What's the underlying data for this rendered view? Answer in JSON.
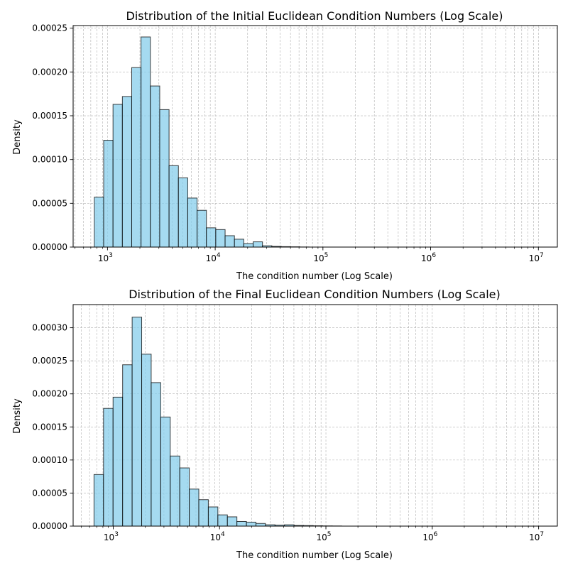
{
  "chart_data": [
    {
      "type": "bar",
      "title": "Distribution of the Initial Euclidean Condition Numbers (Log Scale)",
      "xlabel": "The condition number (Log Scale)",
      "ylabel": "Density",
      "x_scale": "log",
      "xlim": [
        480,
        15000000
      ],
      "ylim": [
        0,
        0.000253
      ],
      "grid": true,
      "bar_color": "#87ceeb",
      "edge_color": "#000000",
      "x_ticks": [
        "10^3",
        "10^4",
        "10^5",
        "10^6",
        "10^7"
      ],
      "y_ticks": [
        "0.00000",
        "0.00005",
        "0.00010",
        "0.00015",
        "0.00020",
        "0.00025"
      ],
      "bin_edges": [
        755,
        922,
        1126,
        1375,
        1678,
        2049,
        2502,
        3055,
        3730,
        4554,
        5560,
        6789,
        8290,
        10122,
        12359,
        15090,
        18425,
        22497,
        27469,
        33540,
        40952,
        50002,
        61052,
        74545,
        91019,
        111134,
        135695,
        165684,
        202300,
        247009,
        301597,
        368250,
        449633,
        548999,
        670325,
        818466,
        999348,
        1220205,
        1489870,
        1819130,
        2221154,
        2712001,
        3311337,
        4043122,
        4936636,
        6027614,
        7359695,
        8986160,
        10972060
      ],
      "values": [
        5.7e-05,
        0.000122,
        0.000163,
        0.000172,
        0.000205,
        0.00024,
        0.000184,
        0.000157,
        9.3e-05,
        7.9e-05,
        5.6e-05,
        4.2e-05,
        2.2e-05,
        2e-05,
        1.3e-05,
        9e-06,
        4e-06,
        6e-06,
        1.5e-06,
        8e-07,
        5e-07,
        3e-07,
        1e-07,
        0,
        0,
        0,
        0,
        0,
        0,
        0,
        0,
        0,
        0,
        0,
        0,
        0,
        0,
        0,
        0,
        0,
        0,
        0,
        0,
        0,
        0,
        0,
        0,
        0
      ]
    },
    {
      "type": "bar",
      "title": "Distribution of the Final Euclidean Condition Numbers (Log Scale)",
      "xlabel": "The condition number (Log Scale)",
      "ylabel": "Density",
      "x_scale": "log",
      "xlim": [
        420,
        15000000
      ],
      "ylim": [
        0,
        0.000335
      ],
      "grid": true,
      "bar_color": "#87ceeb",
      "edge_color": "#000000",
      "x_ticks": [
        "10^3",
        "10^4",
        "10^5",
        "10^6",
        "10^7"
      ],
      "y_ticks": [
        "0.00000",
        "0.00005",
        "0.00010",
        "0.00015",
        "0.00020",
        "0.00025",
        "0.00030"
      ],
      "bin_edges": [
        660,
        811,
        997,
        1226,
        1507,
        1852,
        2276,
        2797,
        3438,
        4225,
        5193,
        6382,
        7843,
        9639,
        11847,
        14560,
        17894,
        21992,
        27028,
        33217,
        40824,
        50173,
        61662,
        75782,
        93136,
        114463,
        140674,
        172888,
        212479,
        261135,
        320933,
        394425,
        484746,
        595750,
        732173,
        899836,
        1105893,
        1359136,
        1670371,
        2052876,
        2522971,
        3100716,
        3810760,
        4683399,
        5755868,
        7073925,
        8693814,
        10684645
      ],
      "values": [
        7.8e-05,
        0.000178,
        0.000195,
        0.000244,
        0.000316,
        0.00026,
        0.000217,
        0.000165,
        0.000106,
        8.8e-05,
        5.6e-05,
        4e-05,
        2.9e-05,
        1.7e-05,
        1.4e-05,
        7e-06,
        6e-06,
        4e-06,
        2e-06,
        1.5e-06,
        2e-06,
        1e-06,
        8e-07,
        5e-07,
        3e-07,
        2e-07,
        0,
        0,
        0,
        0,
        0,
        0,
        0,
        0,
        0,
        0,
        0,
        0,
        0,
        0,
        0,
        0,
        0,
        0,
        0,
        0,
        0
      ]
    }
  ]
}
